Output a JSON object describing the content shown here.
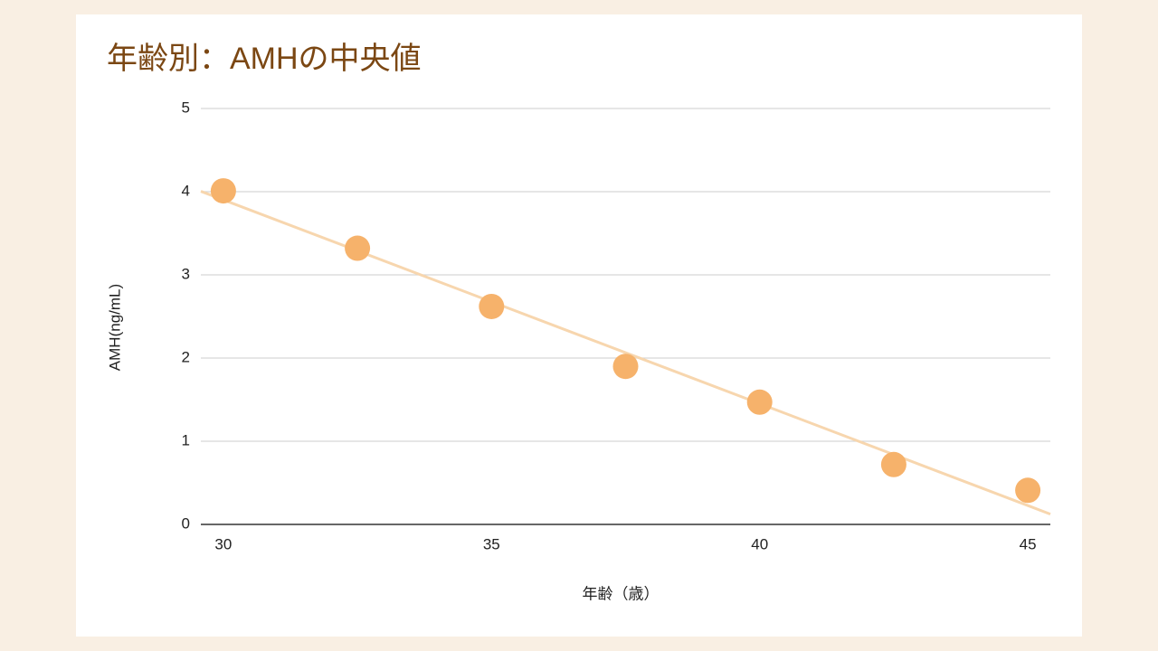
{
  "chart_data": {
    "type": "scatter",
    "title": "年齢別：AMHの中央値",
    "x_label": "年齢（歳）",
    "y_label": "AMH(ng/mL)",
    "series": [
      {
        "name": "AMH",
        "color": "#f6b26b",
        "x": [
          30,
          32.5,
          35,
          37.5,
          40,
          42.5,
          45
        ],
        "values": [
          4.01,
          3.32,
          2.62,
          1.9,
          1.47,
          0.72,
          0.41
        ]
      }
    ],
    "trendline": true,
    "trendline_color": "#f7d6ae",
    "xlim": [
      29.58,
      45.42
    ],
    "xticks": [
      30,
      35,
      40,
      45
    ],
    "ylim": [
      0,
      5
    ],
    "yticks": [
      0,
      1,
      2,
      3,
      4,
      5
    ],
    "grid": true
  }
}
